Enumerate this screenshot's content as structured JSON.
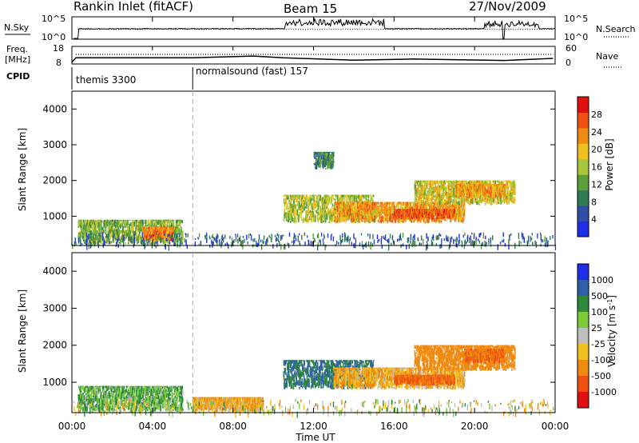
{
  "header": {
    "station": "Rankin Inlet (fitACF)",
    "beam": "Beam 15",
    "date": "27/Nov/2009"
  },
  "nsky_panel": {
    "left_label": "N.Sky",
    "right_label": "N.Search",
    "left_ticks": [
      "10^5",
      "10^0"
    ],
    "right_ticks": [
      "10^5",
      "10^0"
    ]
  },
  "freq_panel": {
    "left_label_1": "Freq.",
    "left_label_2": "[MHz]",
    "right_label": "Nave",
    "left_ticks": [
      "18",
      "8"
    ],
    "right_ticks": [
      "60",
      "0"
    ]
  },
  "cpid_panel": {
    "label": "CPID",
    "modes": [
      {
        "name": "themis",
        "id": "3300"
      },
      {
        "name": "normalsound (fast)",
        "id": "157"
      }
    ],
    "switch_time": "06:00"
  },
  "colors": {
    "power_scale": [
      "#1f2fe8",
      "#2f4ea8",
      "#2e7d52",
      "#5a9e3a",
      "#a8c83a",
      "#f0c020",
      "#f08a10",
      "#ee5010",
      "#e01010"
    ],
    "velocity_scale": [
      "#e01010",
      "#ee5010",
      "#f08a10",
      "#f0c020",
      "#bebebe",
      "#7ccc3a",
      "#2e8a3a",
      "#2f5fa8",
      "#1f2fe8"
    ]
  },
  "chart_data": [
    {
      "type": "heatmap",
      "title": "Power",
      "xlabel": "Time UT",
      "ylabel": "Slant Range [km]",
      "x_ticks": [
        "00:00",
        "04:00",
        "08:00",
        "12:00",
        "16:00",
        "20:00",
        "00:00"
      ],
      "y_ticks": [
        1000,
        2000,
        3000,
        4000
      ],
      "ylim": [
        180,
        4500
      ],
      "colorbar": {
        "label": "Power [dB]",
        "ticks": [
          4,
          8,
          12,
          16,
          20,
          24,
          28
        ],
        "range": [
          0,
          32
        ]
      },
      "regions": [
        {
          "t0": 0.3,
          "t1": 5.5,
          "r0": 200,
          "r1": 900,
          "value": 14
        },
        {
          "t0": 3.5,
          "t1": 5.0,
          "r0": 300,
          "r1": 700,
          "value": 24
        },
        {
          "t0": 10.5,
          "t1": 15.0,
          "r0": 800,
          "r1": 1600,
          "value": 16
        },
        {
          "t0": 13.0,
          "t1": 19.5,
          "r0": 800,
          "r1": 1400,
          "value": 22
        },
        {
          "t0": 16.0,
          "t1": 19.0,
          "r0": 900,
          "r1": 1200,
          "value": 26
        },
        {
          "t0": 17.0,
          "t1": 22.0,
          "r0": 1300,
          "r1": 2000,
          "value": 18
        },
        {
          "t0": 19.0,
          "t1": 21.5,
          "r0": 1500,
          "r1": 1900,
          "value": 22
        },
        {
          "t0": 12.0,
          "t1": 13.0,
          "r0": 2300,
          "r1": 2800,
          "value": 10
        }
      ]
    },
    {
      "type": "heatmap",
      "title": "Velocity",
      "xlabel": "Time UT",
      "ylabel": "Slant Range [km]",
      "x_ticks": [
        "00:00",
        "04:00",
        "08:00",
        "12:00",
        "16:00",
        "20:00",
        "00:00"
      ],
      "y_ticks": [
        1000,
        2000,
        3000,
        4000
      ],
      "ylim": [
        180,
        4500
      ],
      "colorbar": {
        "label": "Velocity [m s^-1]",
        "ticks": [
          1000,
          500,
          100,
          25,
          -25,
          -100,
          -500,
          -1000
        ]
      },
      "regions": [
        {
          "t0": 0.3,
          "t1": 5.5,
          "r0": 200,
          "r1": 900,
          "value": 100
        },
        {
          "t0": 6.0,
          "t1": 9.5,
          "r0": 200,
          "r1": 600,
          "value": -100
        },
        {
          "t0": 10.5,
          "t1": 15.0,
          "r0": 800,
          "r1": 1600,
          "value": 500
        },
        {
          "t0": 13.0,
          "t1": 19.5,
          "r0": 800,
          "r1": 1400,
          "value": -100
        },
        {
          "t0": 16.0,
          "t1": 19.0,
          "r0": 900,
          "r1": 1200,
          "value": -500
        },
        {
          "t0": 17.0,
          "t1": 22.0,
          "r0": 1300,
          "r1": 2000,
          "value": -200
        },
        {
          "t0": 19.5,
          "t1": 21.5,
          "r0": 1500,
          "r1": 1900,
          "value": -500
        }
      ]
    }
  ]
}
